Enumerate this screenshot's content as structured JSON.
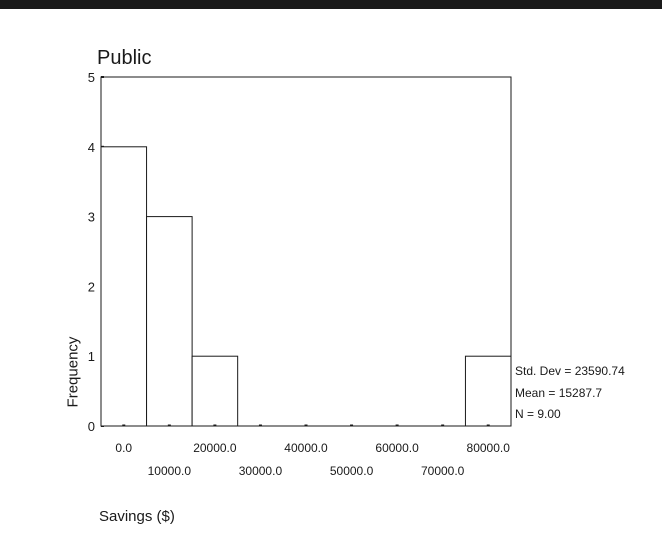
{
  "chart_data": {
    "type": "bar",
    "subtype": "histogram",
    "title": "Public",
    "xlabel": "Savings ($)",
    "ylabel": "Frequency",
    "ylim": [
      0,
      5
    ],
    "yticks": [
      "0",
      "1",
      "2",
      "3",
      "4",
      "5"
    ],
    "bin_width": 10000,
    "bins": [
      {
        "center": 0,
        "count": 4
      },
      {
        "center": 10000,
        "count": 3
      },
      {
        "center": 20000,
        "count": 1
      },
      {
        "center": 30000,
        "count": 0
      },
      {
        "center": 40000,
        "count": 0
      },
      {
        "center": 50000,
        "count": 0
      },
      {
        "center": 60000,
        "count": 0
      },
      {
        "center": 70000,
        "count": 0
      },
      {
        "center": 80000,
        "count": 1
      }
    ],
    "xticks": [
      "0.0",
      "10000.0",
      "20000.0",
      "30000.0",
      "40000.0",
      "50000.0",
      "60000.0",
      "70000.0",
      "80000.0"
    ],
    "grid": false,
    "legend": "none",
    "stats": {
      "std_dev": "Std. Dev = 23590.74",
      "mean": "Mean = 15287.7",
      "n": "N = 9.00"
    },
    "colors": {
      "bar_fill": "#ffffff",
      "stroke": "#1a1a1a"
    }
  }
}
